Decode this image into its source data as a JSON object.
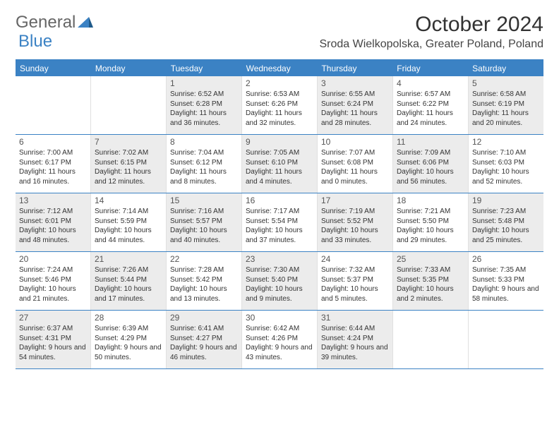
{
  "logo": {
    "text_general": "General",
    "text_blue": "Blue"
  },
  "header": {
    "title": "October 2024",
    "location": "Sroda Wielkopolska, Greater Poland, Poland"
  },
  "colors": {
    "header_bar": "#3b82c4",
    "shaded_cell": "#ececec",
    "border": "#3b82c4",
    "text": "#333333"
  },
  "daysOfWeek": [
    "Sunday",
    "Monday",
    "Tuesday",
    "Wednesday",
    "Thursday",
    "Friday",
    "Saturday"
  ],
  "weeks": [
    [
      {
        "num": "",
        "sunrise": "",
        "sunset": "",
        "daylight": "",
        "shaded": false
      },
      {
        "num": "",
        "sunrise": "",
        "sunset": "",
        "daylight": "",
        "shaded": false
      },
      {
        "num": "1",
        "sunrise": "Sunrise: 6:52 AM",
        "sunset": "Sunset: 6:28 PM",
        "daylight": "Daylight: 11 hours and 36 minutes.",
        "shaded": true
      },
      {
        "num": "2",
        "sunrise": "Sunrise: 6:53 AM",
        "sunset": "Sunset: 6:26 PM",
        "daylight": "Daylight: 11 hours and 32 minutes.",
        "shaded": false
      },
      {
        "num": "3",
        "sunrise": "Sunrise: 6:55 AM",
        "sunset": "Sunset: 6:24 PM",
        "daylight": "Daylight: 11 hours and 28 minutes.",
        "shaded": true
      },
      {
        "num": "4",
        "sunrise": "Sunrise: 6:57 AM",
        "sunset": "Sunset: 6:22 PM",
        "daylight": "Daylight: 11 hours and 24 minutes.",
        "shaded": false
      },
      {
        "num": "5",
        "sunrise": "Sunrise: 6:58 AM",
        "sunset": "Sunset: 6:19 PM",
        "daylight": "Daylight: 11 hours and 20 minutes.",
        "shaded": true
      }
    ],
    [
      {
        "num": "6",
        "sunrise": "Sunrise: 7:00 AM",
        "sunset": "Sunset: 6:17 PM",
        "daylight": "Daylight: 11 hours and 16 minutes.",
        "shaded": false
      },
      {
        "num": "7",
        "sunrise": "Sunrise: 7:02 AM",
        "sunset": "Sunset: 6:15 PM",
        "daylight": "Daylight: 11 hours and 12 minutes.",
        "shaded": true
      },
      {
        "num": "8",
        "sunrise": "Sunrise: 7:04 AM",
        "sunset": "Sunset: 6:12 PM",
        "daylight": "Daylight: 11 hours and 8 minutes.",
        "shaded": false
      },
      {
        "num": "9",
        "sunrise": "Sunrise: 7:05 AM",
        "sunset": "Sunset: 6:10 PM",
        "daylight": "Daylight: 11 hours and 4 minutes.",
        "shaded": true
      },
      {
        "num": "10",
        "sunrise": "Sunrise: 7:07 AM",
        "sunset": "Sunset: 6:08 PM",
        "daylight": "Daylight: 11 hours and 0 minutes.",
        "shaded": false
      },
      {
        "num": "11",
        "sunrise": "Sunrise: 7:09 AM",
        "sunset": "Sunset: 6:06 PM",
        "daylight": "Daylight: 10 hours and 56 minutes.",
        "shaded": true
      },
      {
        "num": "12",
        "sunrise": "Sunrise: 7:10 AM",
        "sunset": "Sunset: 6:03 PM",
        "daylight": "Daylight: 10 hours and 52 minutes.",
        "shaded": false
      }
    ],
    [
      {
        "num": "13",
        "sunrise": "Sunrise: 7:12 AM",
        "sunset": "Sunset: 6:01 PM",
        "daylight": "Daylight: 10 hours and 48 minutes.",
        "shaded": true
      },
      {
        "num": "14",
        "sunrise": "Sunrise: 7:14 AM",
        "sunset": "Sunset: 5:59 PM",
        "daylight": "Daylight: 10 hours and 44 minutes.",
        "shaded": false
      },
      {
        "num": "15",
        "sunrise": "Sunrise: 7:16 AM",
        "sunset": "Sunset: 5:57 PM",
        "daylight": "Daylight: 10 hours and 40 minutes.",
        "shaded": true
      },
      {
        "num": "16",
        "sunrise": "Sunrise: 7:17 AM",
        "sunset": "Sunset: 5:54 PM",
        "daylight": "Daylight: 10 hours and 37 minutes.",
        "shaded": false
      },
      {
        "num": "17",
        "sunrise": "Sunrise: 7:19 AM",
        "sunset": "Sunset: 5:52 PM",
        "daylight": "Daylight: 10 hours and 33 minutes.",
        "shaded": true
      },
      {
        "num": "18",
        "sunrise": "Sunrise: 7:21 AM",
        "sunset": "Sunset: 5:50 PM",
        "daylight": "Daylight: 10 hours and 29 minutes.",
        "shaded": false
      },
      {
        "num": "19",
        "sunrise": "Sunrise: 7:23 AM",
        "sunset": "Sunset: 5:48 PM",
        "daylight": "Daylight: 10 hours and 25 minutes.",
        "shaded": true
      }
    ],
    [
      {
        "num": "20",
        "sunrise": "Sunrise: 7:24 AM",
        "sunset": "Sunset: 5:46 PM",
        "daylight": "Daylight: 10 hours and 21 minutes.",
        "shaded": false
      },
      {
        "num": "21",
        "sunrise": "Sunrise: 7:26 AM",
        "sunset": "Sunset: 5:44 PM",
        "daylight": "Daylight: 10 hours and 17 minutes.",
        "shaded": true
      },
      {
        "num": "22",
        "sunrise": "Sunrise: 7:28 AM",
        "sunset": "Sunset: 5:42 PM",
        "daylight": "Daylight: 10 hours and 13 minutes.",
        "shaded": false
      },
      {
        "num": "23",
        "sunrise": "Sunrise: 7:30 AM",
        "sunset": "Sunset: 5:40 PM",
        "daylight": "Daylight: 10 hours and 9 minutes.",
        "shaded": true
      },
      {
        "num": "24",
        "sunrise": "Sunrise: 7:32 AM",
        "sunset": "Sunset: 5:37 PM",
        "daylight": "Daylight: 10 hours and 5 minutes.",
        "shaded": false
      },
      {
        "num": "25",
        "sunrise": "Sunrise: 7:33 AM",
        "sunset": "Sunset: 5:35 PM",
        "daylight": "Daylight: 10 hours and 2 minutes.",
        "shaded": true
      },
      {
        "num": "26",
        "sunrise": "Sunrise: 7:35 AM",
        "sunset": "Sunset: 5:33 PM",
        "daylight": "Daylight: 9 hours and 58 minutes.",
        "shaded": false
      }
    ],
    [
      {
        "num": "27",
        "sunrise": "Sunrise: 6:37 AM",
        "sunset": "Sunset: 4:31 PM",
        "daylight": "Daylight: 9 hours and 54 minutes.",
        "shaded": true
      },
      {
        "num": "28",
        "sunrise": "Sunrise: 6:39 AM",
        "sunset": "Sunset: 4:29 PM",
        "daylight": "Daylight: 9 hours and 50 minutes.",
        "shaded": false
      },
      {
        "num": "29",
        "sunrise": "Sunrise: 6:41 AM",
        "sunset": "Sunset: 4:27 PM",
        "daylight": "Daylight: 9 hours and 46 minutes.",
        "shaded": true
      },
      {
        "num": "30",
        "sunrise": "Sunrise: 6:42 AM",
        "sunset": "Sunset: 4:26 PM",
        "daylight": "Daylight: 9 hours and 43 minutes.",
        "shaded": false
      },
      {
        "num": "31",
        "sunrise": "Sunrise: 6:44 AM",
        "sunset": "Sunset: 4:24 PM",
        "daylight": "Daylight: 9 hours and 39 minutes.",
        "shaded": true
      },
      {
        "num": "",
        "sunrise": "",
        "sunset": "",
        "daylight": "",
        "shaded": false
      },
      {
        "num": "",
        "sunrise": "",
        "sunset": "",
        "daylight": "",
        "shaded": false
      }
    ]
  ]
}
